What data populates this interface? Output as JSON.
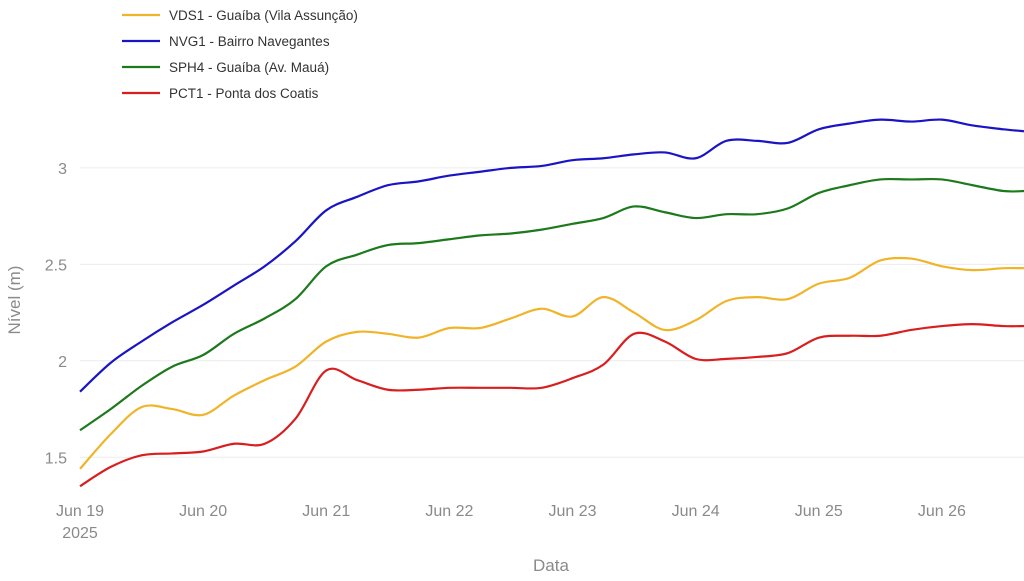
{
  "chart_data": {
    "type": "line",
    "title": "",
    "xlabel": "Data",
    "ylabel": "Nível (m)",
    "ylim": [
      1.32,
      3.3
    ],
    "xlim": [
      "2025-06-19T00:00",
      "2025-06-26T16:00"
    ],
    "grid": true,
    "legend_position": "top-left",
    "yticks": [
      1.5,
      2,
      2.5,
      3
    ],
    "ytick_labels": [
      "1.5",
      "2",
      "2.5",
      "3"
    ],
    "xticks": [
      "2025-06-19",
      "2025-06-20",
      "2025-06-21",
      "2025-06-22",
      "2025-06-23",
      "2025-06-24",
      "2025-06-25",
      "2025-06-26"
    ],
    "xtick_labels": [
      "Jun 19",
      "Jun 20",
      "Jun 21",
      "Jun 22",
      "Jun 23",
      "Jun 24",
      "Jun 25",
      "Jun 26"
    ],
    "xtick_year_label": "2025",
    "x": [
      "2025-06-19T00:00",
      "2025-06-19T06:00",
      "2025-06-19T12:00",
      "2025-06-19T18:00",
      "2025-06-20T00:00",
      "2025-06-20T06:00",
      "2025-06-20T12:00",
      "2025-06-20T18:00",
      "2025-06-21T00:00",
      "2025-06-21T06:00",
      "2025-06-21T12:00",
      "2025-06-21T18:00",
      "2025-06-22T00:00",
      "2025-06-22T06:00",
      "2025-06-22T12:00",
      "2025-06-22T18:00",
      "2025-06-23T00:00",
      "2025-06-23T06:00",
      "2025-06-23T12:00",
      "2025-06-23T18:00",
      "2025-06-24T00:00",
      "2025-06-24T06:00",
      "2025-06-24T12:00",
      "2025-06-24T18:00",
      "2025-06-25T00:00",
      "2025-06-25T06:00",
      "2025-06-25T12:00",
      "2025-06-25T18:00",
      "2025-06-26T00:00",
      "2025-06-26T06:00",
      "2025-06-26T12:00",
      "2025-06-26T16:00"
    ],
    "series": [
      {
        "name": "VDS1 - Guaíba (Vila Assunção)",
        "color": "#f0b429",
        "values": [
          1.44,
          1.62,
          1.76,
          1.75,
          1.72,
          1.82,
          1.9,
          1.97,
          2.1,
          2.15,
          2.14,
          2.12,
          2.17,
          2.17,
          2.22,
          2.27,
          2.23,
          2.33,
          2.25,
          2.16,
          2.21,
          2.31,
          2.33,
          2.32,
          2.4,
          2.43,
          2.52,
          2.53,
          2.49,
          2.47,
          2.48,
          2.48
        ]
      },
      {
        "name": "NVG1 - Bairro Navegantes",
        "color": "#1a14c4",
        "values": [
          1.84,
          1.99,
          2.1,
          2.2,
          2.29,
          2.39,
          2.49,
          2.62,
          2.78,
          2.85,
          2.91,
          2.93,
          2.96,
          2.98,
          3.0,
          3.01,
          3.04,
          3.05,
          3.07,
          3.08,
          3.05,
          3.14,
          3.14,
          3.13,
          3.2,
          3.23,
          3.25,
          3.24,
          3.25,
          3.22,
          3.2,
          3.19
        ]
      },
      {
        "name": "SPH4 - Guaíba (Av. Mauá)",
        "color": "#1c7a1c",
        "values": [
          1.64,
          1.75,
          1.87,
          1.97,
          2.03,
          2.14,
          2.22,
          2.32,
          2.49,
          2.55,
          2.6,
          2.61,
          2.63,
          2.65,
          2.66,
          2.68,
          2.71,
          2.74,
          2.8,
          2.77,
          2.74,
          2.76,
          2.76,
          2.79,
          2.87,
          2.91,
          2.94,
          2.94,
          2.94,
          2.91,
          2.88,
          2.88
        ]
      },
      {
        "name": "PCT1 - Ponta dos Coatis",
        "color": "#d81e1e",
        "values": [
          1.35,
          1.45,
          1.51,
          1.52,
          1.53,
          1.57,
          1.57,
          1.7,
          1.95,
          1.9,
          1.85,
          1.85,
          1.86,
          1.86,
          1.86,
          1.86,
          1.91,
          1.98,
          2.14,
          2.1,
          2.01,
          2.01,
          2.02,
          2.04,
          2.12,
          2.13,
          2.13,
          2.16,
          2.18,
          2.19,
          2.18,
          2.18
        ]
      }
    ]
  }
}
